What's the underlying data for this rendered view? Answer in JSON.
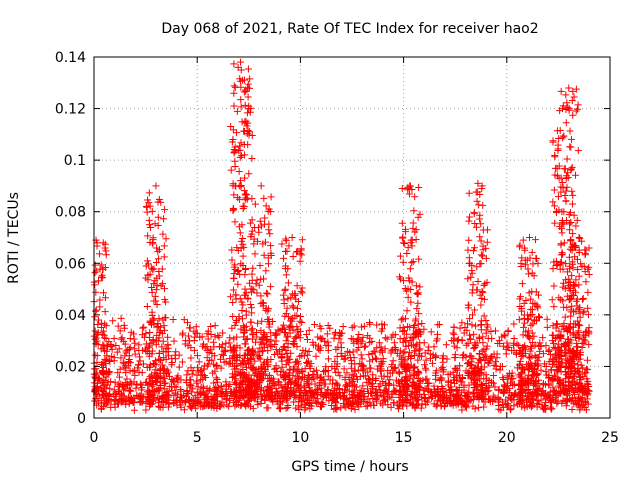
{
  "chart_data": {
    "type": "scatter",
    "title": "Day 068 of 2021, Rate Of TEC Index for receiver hao2",
    "xlabel": "GPS time / hours",
    "ylabel": "ROTI / TECUs",
    "xlim": [
      0,
      25
    ],
    "ylim": [
      0,
      0.14
    ],
    "xticks": [
      0,
      5,
      10,
      15,
      20,
      25
    ],
    "yticks": [
      0,
      0.02,
      0.04,
      0.06,
      0.08,
      0.1,
      0.12,
      0.14
    ],
    "xtick_labels": [
      "0",
      "5",
      "10",
      "15",
      "20",
      "25"
    ],
    "ytick_labels": [
      "0",
      "0.02",
      "0.04",
      "0.06",
      "0.08",
      "0.1",
      "0.12",
      "0.14"
    ],
    "grid": true,
    "marker": "+",
    "color": "#ff0000",
    "series": [
      {
        "peaks": [
          {
            "x": 3.0,
            "y": 0.09
          },
          {
            "x": 7.1,
            "y": 0.138
          },
          {
            "x": 7.2,
            "y": 0.131
          },
          {
            "x": 8.1,
            "y": 0.09
          },
          {
            "x": 9.6,
            "y": 0.07
          },
          {
            "x": 15.3,
            "y": 0.09
          },
          {
            "x": 18.6,
            "y": 0.091
          },
          {
            "x": 21.1,
            "y": 0.07
          },
          {
            "x": 22.7,
            "y": 0.12
          },
          {
            "x": 23.0,
            "y": 0.128
          },
          {
            "x": 23.5,
            "y": 0.07
          },
          {
            "x": 0.1,
            "y": 0.069
          }
        ]
      }
    ]
  }
}
